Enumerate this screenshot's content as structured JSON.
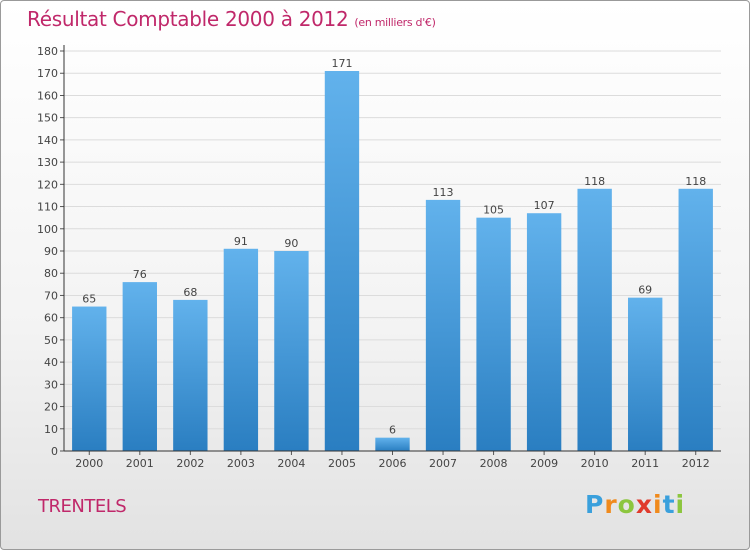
{
  "header": {
    "title": "Résultat Comptable 2000 à 2012",
    "subtitle": "(en milliers d'€)"
  },
  "location": "TRENTELS",
  "brand": {
    "letters": [
      "P",
      "r",
      "o",
      "x",
      "i",
      "t",
      "i"
    ],
    "colors": [
      "#3aa0dc",
      "#f08a1c",
      "#8cc63e",
      "#e03a2c",
      "#f08a1c",
      "#3aa0dc",
      "#8cc63e"
    ]
  },
  "colors": {
    "bar_light": "#62b2ec",
    "bar_dark": "#2a7ec1",
    "accent": "#c0286a"
  },
  "chart_data": {
    "type": "bar",
    "title": "Résultat Comptable 2000 à 2012 (en milliers d'€)",
    "xlabel": "",
    "ylabel": "",
    "categories": [
      "2000",
      "2001",
      "2002",
      "2003",
      "2004",
      "2005",
      "2006",
      "2007",
      "2008",
      "2009",
      "2010",
      "2011",
      "2012"
    ],
    "values": [
      65,
      76,
      68,
      91,
      90,
      171,
      6,
      113,
      105,
      107,
      118,
      69,
      118
    ],
    "ylim": [
      0,
      180
    ],
    "yticks": [
      0,
      10,
      20,
      30,
      40,
      50,
      60,
      70,
      80,
      90,
      100,
      110,
      120,
      130,
      140,
      150,
      160,
      170,
      180
    ],
    "grid": true,
    "legend": "none"
  }
}
